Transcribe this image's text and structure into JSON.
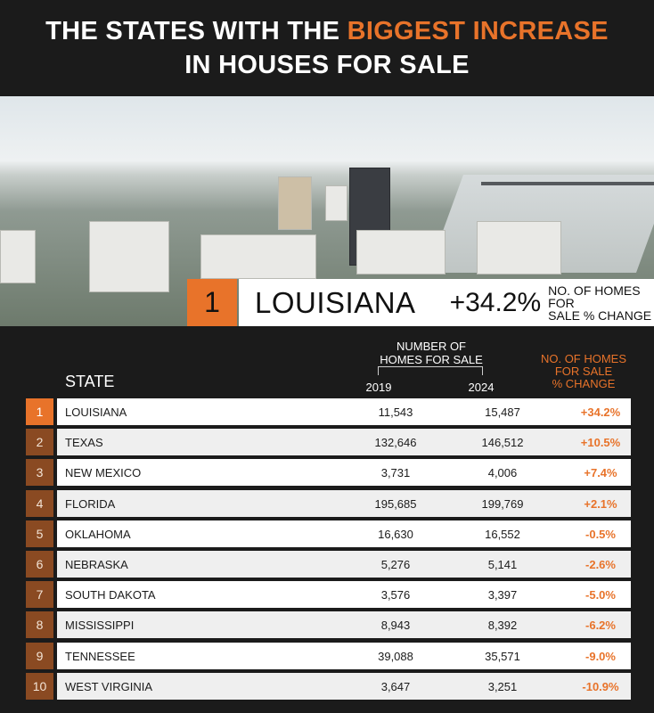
{
  "header": {
    "title_part1": "THE STATES WITH THE ",
    "title_highlight": "BIGGEST INCREASE",
    "title_line2": "IN HOUSES FOR SALE",
    "accent_color": "#e8732a"
  },
  "banner": {
    "rank": "1",
    "state": "LOUISIANA",
    "change": "+34.2%",
    "label_line1": "NO. OF HOMES FOR",
    "label_line2": "SALE % CHANGE"
  },
  "chart_data": {
    "type": "table",
    "columns": {
      "state": "STATE",
      "group": [
        "NUMBER OF",
        "HOMES FOR SALE"
      ],
      "y2019": "2019",
      "y2024": "2024",
      "change": [
        "NO. OF HOMES",
        "FOR SALE",
        "% CHANGE"
      ]
    },
    "rows": [
      {
        "rank": "1",
        "state": "LOUISIANA",
        "y2019": "11,543",
        "y2024": "15,487",
        "change": "+34.2%"
      },
      {
        "rank": "2",
        "state": "TEXAS",
        "y2019": "132,646",
        "y2024": "146,512",
        "change": "+10.5%"
      },
      {
        "rank": "3",
        "state": "NEW MEXICO",
        "y2019": "3,731",
        "y2024": "4,006",
        "change": "+7.4%"
      },
      {
        "rank": "4",
        "state": "FLORIDA",
        "y2019": "195,685",
        "y2024": "199,769",
        "change": "+2.1%"
      },
      {
        "rank": "5",
        "state": "OKLAHOMA",
        "y2019": "16,630",
        "y2024": "16,552",
        "change": "-0.5%"
      },
      {
        "rank": "6",
        "state": "NEBRASKA",
        "y2019": "5,276",
        "y2024": "5,141",
        "change": "-2.6%"
      },
      {
        "rank": "7",
        "state": "SOUTH DAKOTA",
        "y2019": "3,576",
        "y2024": "3,397",
        "change": "-5.0%"
      },
      {
        "rank": "8",
        "state": "MISSISSIPPI",
        "y2019": "8,943",
        "y2024": "8,392",
        "change": "-6.2%"
      },
      {
        "rank": "9",
        "state": "TENNESSEE",
        "y2019": "39,088",
        "y2024": "35,571",
        "change": "-9.0%"
      },
      {
        "rank": "10",
        "state": "WEST VIRGINIA",
        "y2019": "3,647",
        "y2024": "3,251",
        "change": "-10.9%"
      }
    ]
  }
}
